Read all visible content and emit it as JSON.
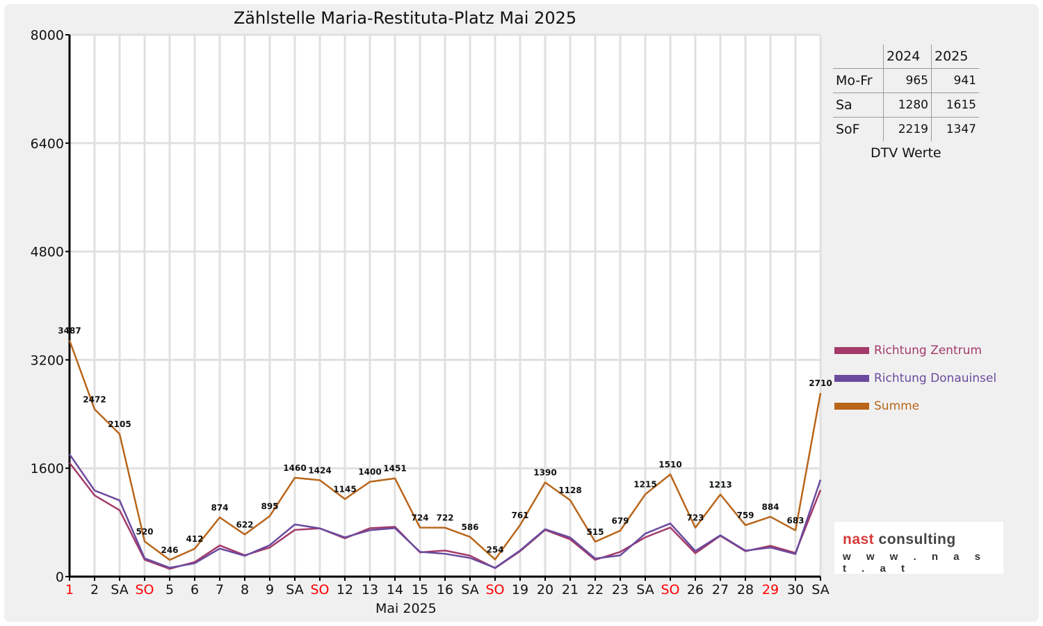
{
  "chart_data": {
    "type": "line",
    "title": "Zählstelle Maria-Restituta-Platz Mai 2025",
    "xlabel": "Mai 2025",
    "ylabel": "",
    "ylim": [
      0,
      8000
    ],
    "yticks": [
      0,
      1600,
      3200,
      4800,
      6400,
      8000
    ],
    "grid": true,
    "legend_position": "right",
    "categories": [
      "1",
      "2",
      "SA",
      "SO",
      "5",
      "6",
      "7",
      "8",
      "9",
      "SA",
      "SO",
      "12",
      "13",
      "14",
      "15",
      "16",
      "SA",
      "SO",
      "19",
      "20",
      "21",
      "22",
      "23",
      "SA",
      "SO",
      "26",
      "27",
      "28",
      "29",
      "30",
      "SA"
    ],
    "red_categories": [
      0,
      3,
      10,
      17,
      24,
      28
    ],
    "series": [
      {
        "name": "Richtung Zentrum",
        "color": "#a33a6a",
        "values": [
          1680,
          1200,
          980,
          250,
          115,
          215,
          460,
          315,
          430,
          690,
          712,
          565,
          715,
          735,
          358,
          385,
          310,
          125,
          375,
          690,
          550,
          248,
          365,
          580,
          725,
          345,
          603,
          375,
          455,
          350,
          1280
        ]
      },
      {
        "name": "Richtung Donauinsel",
        "color": "#6a4a9e",
        "values": [
          1807,
          1272,
          1125,
          270,
          131,
          197,
          414,
          307,
          465,
          770,
          712,
          580,
          685,
          716,
          366,
          337,
          276,
          129,
          386,
          700,
          578,
          267,
          314,
          635,
          785,
          378,
          610,
          384,
          429,
          333,
          1430
        ]
      },
      {
        "name": "Summe",
        "color": "#b8651a",
        "labeled": true,
        "values": [
          3487,
          2472,
          2105,
          520,
          246,
          412,
          874,
          622,
          895,
          1460,
          1424,
          1145,
          1400,
          1451,
          724,
          722,
          586,
          254,
          761,
          1390,
          1128,
          515,
          679,
          1215,
          1510,
          723,
          1213,
          759,
          884,
          683,
          2710
        ]
      }
    ]
  },
  "dtv_table": {
    "headers": [
      "",
      "2024",
      "2025"
    ],
    "rows": [
      {
        "label": "Mo-Fr",
        "v2024": "965",
        "v2025": "941"
      },
      {
        "label": "Sa",
        "v2024": "1280",
        "v2025": "1615"
      },
      {
        "label": "SoF",
        "v2024": "2219",
        "v2025": "1347"
      }
    ],
    "caption": "DTV Werte"
  },
  "logo": {
    "brand_red": "nast",
    "brand_dark": "consulting",
    "url": "w w w . n a s t . a t"
  }
}
